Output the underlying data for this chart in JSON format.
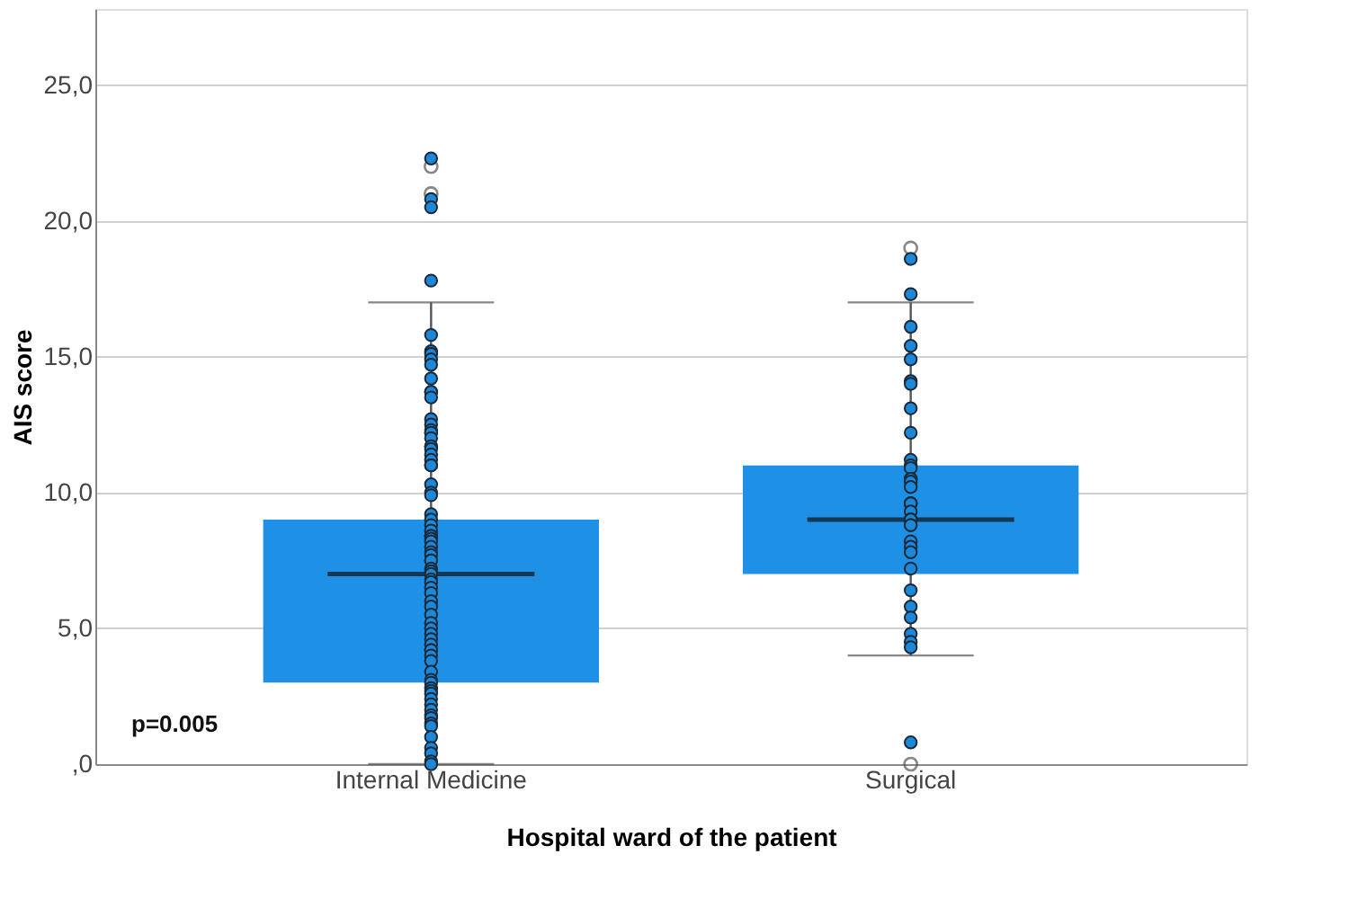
{
  "chart_data": {
    "type": "box",
    "xlabel": "Hospital ward of the patient",
    "ylabel": "AIS score",
    "categories": [
      "Internal Medicine",
      "Surgical"
    ],
    "boxes": [
      {
        "low": 0,
        "q1": 3,
        "median": 7,
        "q3": 9,
        "high": 17,
        "outliers": [
          21,
          22
        ]
      },
      {
        "low": 4,
        "q1": 7,
        "median": 9,
        "q3": 11,
        "high": 17,
        "outliers": [
          19,
          0
        ]
      }
    ],
    "color": "#1e90e6",
    "series": [
      {
        "type": "scatter",
        "color": "#1e88d8",
        "x": [
          "Internal Medicine",
          "Internal Medicine",
          "Internal Medicine",
          "Internal Medicine",
          "Internal Medicine",
          "Internal Medicine",
          "Internal Medicine",
          "Internal Medicine",
          "Internal Medicine",
          "Internal Medicine",
          "Internal Medicine",
          "Internal Medicine",
          "Internal Medicine",
          "Internal Medicine",
          "Internal Medicine",
          "Internal Medicine",
          "Internal Medicine",
          "Internal Medicine",
          "Internal Medicine",
          "Internal Medicine",
          "Internal Medicine",
          "Internal Medicine",
          "Internal Medicine",
          "Internal Medicine",
          "Internal Medicine",
          "Internal Medicine",
          "Internal Medicine",
          "Internal Medicine",
          "Internal Medicine",
          "Internal Medicine",
          "Internal Medicine",
          "Internal Medicine",
          "Internal Medicine",
          "Internal Medicine",
          "Internal Medicine",
          "Internal Medicine",
          "Internal Medicine",
          "Internal Medicine",
          "Internal Medicine",
          "Internal Medicine",
          "Internal Medicine",
          "Internal Medicine",
          "Internal Medicine",
          "Internal Medicine",
          "Internal Medicine",
          "Internal Medicine",
          "Internal Medicine",
          "Internal Medicine",
          "Internal Medicine",
          "Internal Medicine",
          "Internal Medicine",
          "Internal Medicine",
          "Internal Medicine",
          "Internal Medicine",
          "Internal Medicine",
          "Internal Medicine",
          "Internal Medicine",
          "Internal Medicine",
          "Internal Medicine",
          "Internal Medicine",
          "Internal Medicine",
          "Internal Medicine",
          "Internal Medicine",
          "Internal Medicine",
          "Internal Medicine",
          "Internal Medicine",
          "Internal Medicine",
          "Internal Medicine",
          "Internal Medicine",
          "Internal Medicine",
          "Internal Medicine",
          "Internal Medicine",
          "Internal Medicine",
          "Internal Medicine",
          "Internal Medicine",
          "Internal Medicine",
          "Internal Medicine",
          "Internal Medicine",
          "Internal Medicine",
          "Internal Medicine",
          "Surgical",
          "Surgical",
          "Surgical",
          "Surgical",
          "Surgical",
          "Surgical",
          "Surgical",
          "Surgical",
          "Surgical",
          "Surgical",
          "Surgical",
          "Surgical",
          "Surgical",
          "Surgical",
          "Surgical",
          "Surgical",
          "Surgical",
          "Surgical",
          "Surgical",
          "Surgical",
          "Surgical",
          "Surgical",
          "Surgical",
          "Surgical",
          "Surgical",
          "Surgical",
          "Surgical",
          "Surgical",
          "Surgical",
          "Surgical",
          "Surgical",
          "Surgical",
          "Surgical",
          "Surgical",
          "Surgical",
          "Surgical"
        ],
        "values": [
          22.3,
          20.8,
          20.5,
          17.8,
          15.8,
          15.2,
          15.1,
          14.9,
          14.7,
          14.2,
          13.7,
          13.7,
          13.5,
          12.7,
          12.5,
          12.3,
          12.2,
          12.2,
          12.0,
          11.7,
          11.7,
          11.6,
          11.4,
          11.2,
          11.0,
          11.0,
          10.3,
          10.0,
          9.9,
          9.2,
          9.0,
          8.8,
          8.6,
          8.4,
          8.4,
          8.4,
          8.3,
          8.2,
          8.0,
          7.8,
          7.7,
          7.5,
          7.5,
          7.2,
          7.1,
          7.0,
          6.8,
          6.7,
          6.5,
          6.3,
          6.0,
          5.8,
          5.5,
          5.2,
          5.0,
          4.8,
          4.6,
          4.4,
          4.2,
          4.2,
          4.0,
          3.8,
          3.4,
          3.1,
          3.0,
          2.8,
          2.7,
          2.6,
          2.4,
          2.2,
          2.0,
          1.8,
          1.7,
          1.5,
          1.4,
          1.0,
          0.6,
          0.4,
          0.1,
          0,
          18.6,
          17.3,
          16.1,
          15.4,
          14.9,
          14.1,
          14.0,
          13.1,
          12.2,
          11.2,
          11.0,
          10.9,
          10.5,
          10.5,
          10.4,
          10.2,
          9.6,
          9.6,
          9.6,
          9.3,
          9.0,
          9.0,
          9.0,
          8.8,
          8.8,
          8.2,
          8.0,
          7.8,
          7.2,
          6.4,
          5.8,
          5.4,
          4.8,
          4.5,
          4.3,
          0.8
        ]
      }
    ],
    "ylim": [
      0,
      27.8
    ],
    "yticks": [
      {
        "value": 0,
        "label": ",0"
      },
      {
        "value": 5,
        "label": "5,0"
      },
      {
        "value": 10,
        "label": "10,0"
      },
      {
        "value": 15,
        "label": "15,0"
      },
      {
        "value": 20,
        "label": "20,0"
      },
      {
        "value": 25,
        "label": "25,0"
      }
    ],
    "grid": "y",
    "annotations": [
      "p=0.005"
    ]
  }
}
